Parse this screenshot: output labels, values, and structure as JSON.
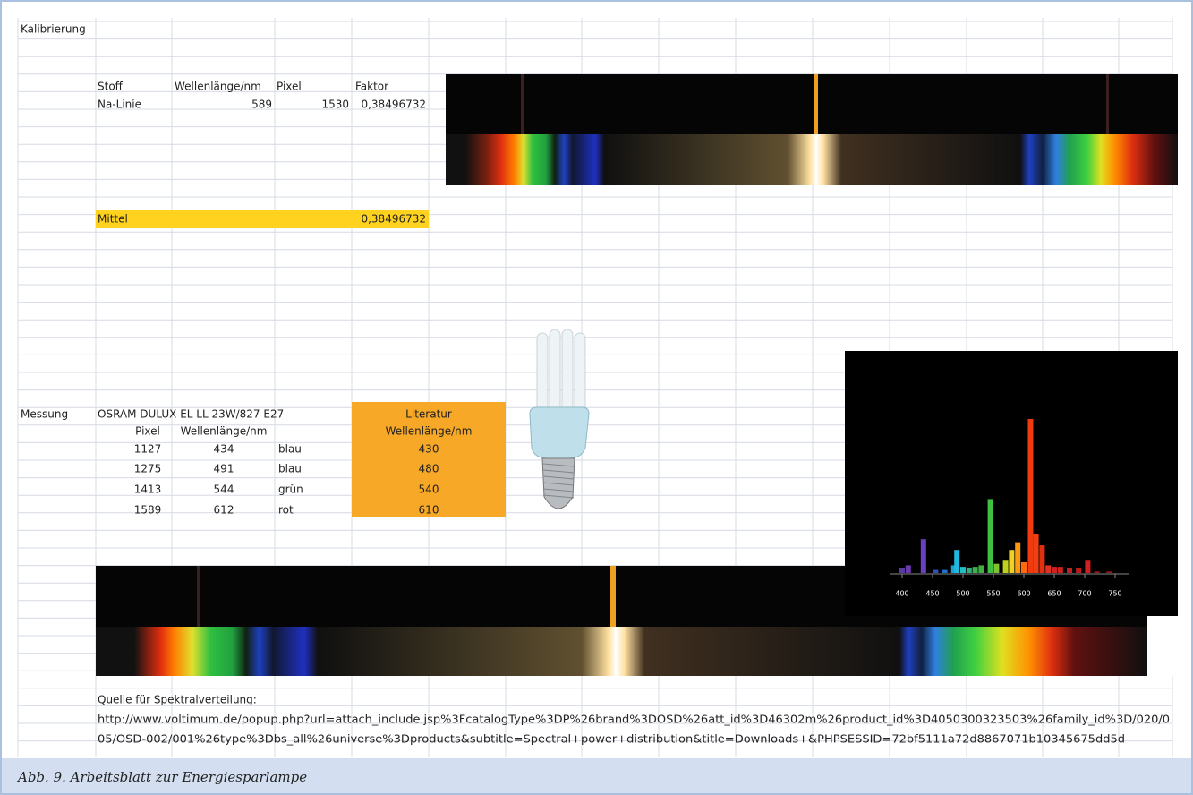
{
  "sheet": {
    "calibration": {
      "label": "Kalibrierung",
      "headers": [
        "Stoff",
        "Wellenlänge/nm",
        "Pixel",
        "Faktor"
      ],
      "rows": [
        [
          "Na-Linie",
          589,
          1530,
          "0,38496732"
        ]
      ],
      "mean_label": "Mittel",
      "mean": "0,38496732"
    },
    "measurement": {
      "label": "Messung",
      "lamp": "OSRAM DULUX EL LL 23W/827 E27",
      "headers": [
        "Pixel",
        "Wellenlänge/nm"
      ],
      "literature_headers": [
        "Literatur",
        "Wellenlänge/nm"
      ],
      "rows": [
        [
          1127,
          434,
          "blau",
          430
        ],
        [
          1275,
          491,
          "blau",
          480
        ],
        [
          1413,
          544,
          "grün",
          540
        ],
        [
          1589,
          612,
          "rot",
          610
        ]
      ]
    },
    "source": {
      "label": "Quelle für Spektralverteilung:",
      "url_lines": [
        "http://www.voltimum.de/popup.php?url=attach_include.jsp%3FcatalogType%3DP%26brand%3DOSD%26att_id%3D46302m%26product_id%3D4050300323503%26family_id%3D/020/0",
        "05/OSD-002/001%26type%3Dbs_all%26universe%3Dproducts&subtitle=Spectral+power+distribution&title=Downloads+&PHPSESSID=72bf5111a72d8867071b10345675dd5d"
      ]
    }
  },
  "spectrum_chart": {
    "type": "bar",
    "x": [
      400,
      410,
      435,
      455,
      470,
      485,
      490,
      500,
      510,
      520,
      530,
      545,
      555,
      570,
      580,
      590,
      600,
      611,
      620,
      630,
      640,
      650,
      660,
      675,
      690,
      705,
      720,
      740
    ],
    "values": [
      3,
      5,
      22,
      2,
      2,
      5,
      15,
      4,
      3,
      4,
      5,
      48,
      6,
      8,
      15,
      20,
      7,
      100,
      25,
      18,
      5,
      4,
      4,
      3,
      3,
      8,
      1,
      1
    ],
    "colors": [
      "#5a3aa0",
      "#6a3ab0",
      "#6a40c0",
      "#3050c0",
      "#2070d0",
      "#20a0d0",
      "#20b8e0",
      "#20c0c0",
      "#30b080",
      "#40b050",
      "#40b040",
      "#40c040",
      "#80c030",
      "#c0d020",
      "#f0d020",
      "#ff9a10",
      "#ff6a10",
      "#f03a10",
      "#f04010",
      "#e03010",
      "#e03020",
      "#d02020",
      "#d02020",
      "#c02020",
      "#c01820",
      "#d02020",
      "#a01818",
      "#901818"
    ],
    "xlim": [
      370,
      770
    ],
    "ylim": [
      0,
      100
    ],
    "xticks": [
      400,
      450,
      500,
      550,
      600,
      650,
      700,
      750
    ]
  },
  "caption": "Abb. 9. Arbeitsblatt zur Energiesparlampe"
}
